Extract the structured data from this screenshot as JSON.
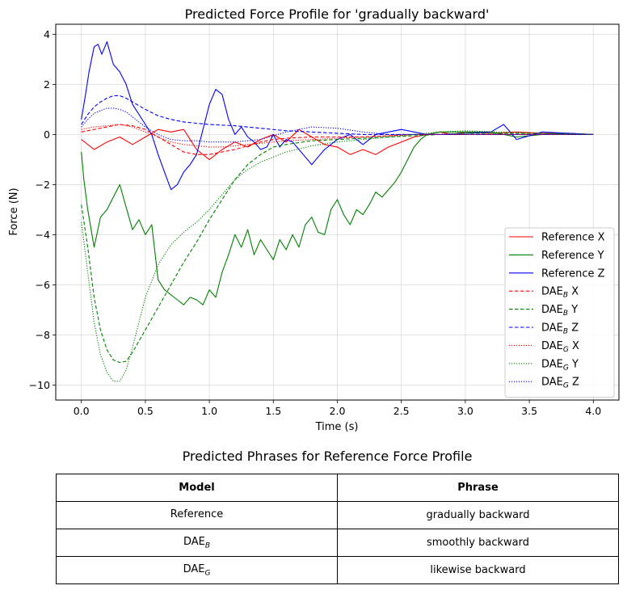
{
  "chart_data": {
    "type": "line",
    "title": "Predicted Force Profile for 'gradually backward'",
    "xlabel": "Time (s)",
    "ylabel": "Force (N)",
    "xlim": [
      -0.2,
      4.2
    ],
    "ylim": [
      -10.6,
      4.4
    ],
    "xticks": [
      0.0,
      0.5,
      1.0,
      1.5,
      2.0,
      2.5,
      3.0,
      3.5,
      4.0
    ],
    "xtick_labels": [
      "0.0",
      "0.5",
      "1.0",
      "1.5",
      "2.0",
      "2.5",
      "3.0",
      "3.5",
      "4.0"
    ],
    "yticks": [
      -10,
      -8,
      -6,
      -4,
      -2,
      0,
      2,
      4
    ],
    "ytick_labels": [
      "−10",
      "−8",
      "−6",
      "−4",
      "−2",
      "0",
      "2",
      "4"
    ],
    "grid": true,
    "legend_position": "lower-right",
    "series": [
      {
        "name": "Reference X",
        "legend_main": "Reference",
        "legend_sub": "",
        "legend_axis": "X",
        "color": "#ff0000",
        "dash": "solid",
        "x": [
          0,
          0.1,
          0.2,
          0.3,
          0.4,
          0.5,
          0.6,
          0.7,
          0.8,
          0.9,
          1.0,
          1.1,
          1.2,
          1.3,
          1.4,
          1.5,
          1.6,
          1.7,
          1.8,
          1.9,
          2.0,
          2.1,
          2.2,
          2.3,
          2.4,
          2.5,
          2.6,
          2.7,
          2.8,
          2.9,
          3.0,
          3.2,
          3.4,
          3.6,
          3.8,
          4.0
        ],
        "y": [
          -0.2,
          -0.6,
          -0.3,
          -0.1,
          -0.4,
          -0.1,
          0.2,
          0.1,
          0.2,
          -0.6,
          -1.0,
          -0.6,
          -0.3,
          -0.5,
          -0.2,
          0.0,
          -0.3,
          0.2,
          -0.1,
          -0.4,
          -0.5,
          -0.8,
          -0.6,
          -0.8,
          -0.5,
          -0.3,
          -0.1,
          0.0,
          0.1,
          0.0,
          0.1,
          0.05,
          0.1,
          0.05,
          0.05,
          0.0
        ]
      },
      {
        "name": "Reference Y",
        "legend_main": "Reference",
        "legend_sub": "",
        "legend_axis": "Y",
        "color": "#008000",
        "dash": "solid",
        "x": [
          0,
          0.02,
          0.05,
          0.1,
          0.15,
          0.2,
          0.25,
          0.3,
          0.35,
          0.4,
          0.45,
          0.5,
          0.55,
          0.6,
          0.65,
          0.7,
          0.75,
          0.8,
          0.85,
          0.9,
          0.95,
          1.0,
          1.05,
          1.1,
          1.15,
          1.2,
          1.25,
          1.3,
          1.35,
          1.4,
          1.45,
          1.5,
          1.55,
          1.6,
          1.65,
          1.7,
          1.75,
          1.8,
          1.85,
          1.9,
          1.95,
          2.0,
          2.05,
          2.1,
          2.15,
          2.2,
          2.25,
          2.3,
          2.35,
          2.4,
          2.45,
          2.5,
          2.55,
          2.6,
          2.65,
          2.7,
          2.8,
          2.9,
          3.0,
          3.2,
          3.4,
          3.6,
          3.8,
          4.0
        ],
        "y": [
          -0.7,
          -1.8,
          -3.0,
          -4.5,
          -3.3,
          -3.0,
          -2.5,
          -2.0,
          -2.9,
          -3.8,
          -3.4,
          -4.0,
          -3.6,
          -5.8,
          -6.2,
          -6.4,
          -6.6,
          -6.8,
          -6.5,
          -6.6,
          -6.8,
          -6.2,
          -6.5,
          -5.5,
          -4.8,
          -4.0,
          -4.5,
          -3.8,
          -4.8,
          -4.2,
          -4.6,
          -5.0,
          -4.2,
          -4.6,
          -4.0,
          -4.5,
          -3.6,
          -3.3,
          -3.9,
          -4.0,
          -3.0,
          -2.6,
          -3.2,
          -3.6,
          -3.0,
          -3.2,
          -2.8,
          -2.3,
          -2.5,
          -2.2,
          -1.9,
          -1.5,
          -1.0,
          -0.5,
          -0.2,
          0.0,
          0.1,
          0.1,
          0.1,
          0.1,
          -0.1,
          0.0,
          0.05,
          0.0
        ]
      },
      {
        "name": "Reference Z",
        "legend_main": "Reference",
        "legend_sub": "",
        "legend_axis": "Z",
        "color": "#0000ff",
        "dash": "solid",
        "x": [
          0,
          0.03,
          0.06,
          0.1,
          0.13,
          0.16,
          0.2,
          0.25,
          0.3,
          0.35,
          0.4,
          0.45,
          0.5,
          0.55,
          0.6,
          0.65,
          0.7,
          0.75,
          0.8,
          0.85,
          0.9,
          0.95,
          1.0,
          1.05,
          1.1,
          1.15,
          1.2,
          1.25,
          1.3,
          1.35,
          1.4,
          1.45,
          1.5,
          1.55,
          1.6,
          1.65,
          1.7,
          1.75,
          1.8,
          1.85,
          1.9,
          1.95,
          2.0,
          2.1,
          2.2,
          2.3,
          2.4,
          2.5,
          2.6,
          2.7,
          2.8,
          3.0,
          3.2,
          3.3,
          3.4,
          3.6,
          3.8,
          4.0
        ],
        "y": [
          0.6,
          1.5,
          2.5,
          3.5,
          3.6,
          3.2,
          3.7,
          2.8,
          2.5,
          2.0,
          1.2,
          0.8,
          0.4,
          0.0,
          -0.8,
          -1.5,
          -2.2,
          -2.0,
          -1.5,
          -1.2,
          -0.8,
          0.2,
          1.2,
          1.8,
          1.6,
          0.6,
          0.0,
          0.3,
          -0.1,
          -0.3,
          -0.6,
          -0.5,
          0.0,
          -0.5,
          -0.2,
          -0.3,
          -0.6,
          -0.9,
          -1.2,
          -0.9,
          -0.6,
          -0.4,
          -0.2,
          0.0,
          -0.4,
          0.0,
          0.1,
          0.2,
          0.1,
          0.0,
          0.0,
          0.05,
          0.1,
          0.4,
          -0.2,
          0.1,
          0.05,
          0.0
        ]
      },
      {
        "name": "DAE_B X",
        "legend_main": "DAE",
        "legend_sub": "B",
        "legend_axis": "X",
        "color": "#ff0000",
        "dash": "dashed",
        "x": [
          0,
          0.1,
          0.2,
          0.3,
          0.4,
          0.5,
          0.6,
          0.7,
          0.8,
          0.9,
          1.0,
          1.1,
          1.2,
          1.3,
          1.4,
          1.5,
          1.6,
          1.8,
          2.0,
          2.2,
          2.4,
          2.6,
          2.8,
          3.0,
          3.5,
          4.0
        ],
        "y": [
          0.1,
          0.2,
          0.3,
          0.4,
          0.35,
          0.2,
          -0.1,
          -0.4,
          -0.7,
          -0.8,
          -0.8,
          -0.7,
          -0.6,
          -0.45,
          -0.3,
          -0.2,
          -0.15,
          -0.1,
          -0.1,
          -0.1,
          -0.05,
          0.0,
          0.0,
          0.0,
          0.0,
          0.0
        ]
      },
      {
        "name": "DAE_B Y",
        "legend_main": "DAE",
        "legend_sub": "B",
        "legend_axis": "Y",
        "color": "#008000",
        "dash": "dashed",
        "x": [
          0,
          0.05,
          0.1,
          0.15,
          0.2,
          0.25,
          0.3,
          0.35,
          0.4,
          0.5,
          0.6,
          0.7,
          0.8,
          0.9,
          1.0,
          1.1,
          1.2,
          1.3,
          1.4,
          1.5,
          1.6,
          1.8,
          2.0,
          2.2,
          2.4,
          2.6,
          2.8,
          3.0,
          3.5,
          4.0
        ],
        "y": [
          -2.8,
          -4.5,
          -6.5,
          -7.8,
          -8.6,
          -9.0,
          -9.1,
          -9.05,
          -8.7,
          -7.8,
          -6.9,
          -6.0,
          -5.1,
          -4.3,
          -3.4,
          -2.6,
          -1.8,
          -1.2,
          -0.8,
          -0.5,
          -0.4,
          -0.25,
          -0.2,
          -0.15,
          -0.1,
          -0.05,
          0.0,
          0.05,
          0.05,
          0.0
        ]
      },
      {
        "name": "DAE_B Z",
        "legend_main": "DAE",
        "legend_sub": "B",
        "legend_axis": "Z",
        "color": "#0000ff",
        "dash": "dashed",
        "x": [
          0,
          0.05,
          0.1,
          0.15,
          0.2,
          0.25,
          0.3,
          0.35,
          0.4,
          0.5,
          0.6,
          0.7,
          0.8,
          0.9,
          1.0,
          1.2,
          1.4,
          1.6,
          1.8,
          2.0,
          2.2,
          2.4,
          2.6,
          3.0,
          3.5,
          4.0
        ],
        "y": [
          0.4,
          0.8,
          1.1,
          1.3,
          1.45,
          1.55,
          1.55,
          1.45,
          1.3,
          1.0,
          0.75,
          0.6,
          0.5,
          0.45,
          0.4,
          0.35,
          0.25,
          0.15,
          0.1,
          0.05,
          0.0,
          0.0,
          0.0,
          0.0,
          0.0,
          0.0
        ]
      },
      {
        "name": "DAE_G X",
        "legend_main": "DAE",
        "legend_sub": "G",
        "legend_axis": "X",
        "color": "#ff0000",
        "dash": "dotted",
        "x": [
          0,
          0.1,
          0.2,
          0.3,
          0.4,
          0.5,
          0.6,
          0.7,
          0.8,
          0.9,
          1.0,
          1.1,
          1.2,
          1.4,
          1.6,
          1.8,
          2.0,
          2.2,
          2.4,
          2.6,
          3.0,
          3.5,
          4.0
        ],
        "y": [
          0.2,
          0.3,
          0.35,
          0.4,
          0.3,
          0.1,
          -0.1,
          -0.3,
          -0.4,
          -0.45,
          -0.5,
          -0.5,
          -0.45,
          -0.35,
          -0.25,
          -0.2,
          -0.15,
          -0.1,
          -0.05,
          0.0,
          0.0,
          0.0,
          0.0
        ]
      },
      {
        "name": "DAE_G Y",
        "legend_main": "DAE",
        "legend_sub": "G",
        "legend_axis": "Y",
        "color": "#008000",
        "dash": "dotted",
        "x": [
          0,
          0.05,
          0.1,
          0.15,
          0.2,
          0.25,
          0.3,
          0.35,
          0.4,
          0.45,
          0.5,
          0.6,
          0.7,
          0.8,
          0.9,
          1.0,
          1.1,
          1.2,
          1.3,
          1.4,
          1.5,
          1.6,
          1.8,
          2.0,
          2.2,
          2.4,
          2.6,
          2.8,
          3.0,
          3.5,
          4.0
        ],
        "y": [
          -3.5,
          -5.5,
          -7.5,
          -8.8,
          -9.5,
          -9.85,
          -9.85,
          -9.4,
          -8.5,
          -7.5,
          -6.5,
          -5.2,
          -4.4,
          -3.9,
          -3.5,
          -3.0,
          -2.4,
          -1.8,
          -1.4,
          -1.1,
          -0.9,
          -0.7,
          -0.45,
          -0.3,
          -0.2,
          -0.1,
          0.0,
          0.1,
          0.15,
          0.05,
          0.0
        ]
      },
      {
        "name": "DAE_G Z",
        "legend_main": "DAE",
        "legend_sub": "G",
        "legend_axis": "Z",
        "color": "#0000ff",
        "dash": "dotted",
        "x": [
          0,
          0.05,
          0.1,
          0.15,
          0.2,
          0.25,
          0.3,
          0.35,
          0.4,
          0.5,
          0.6,
          0.7,
          0.8,
          0.9,
          1.0,
          1.2,
          1.4,
          1.6,
          1.8,
          2.0,
          2.2,
          2.4,
          2.6,
          3.0,
          3.5,
          4.0
        ],
        "y": [
          0.3,
          0.6,
          0.85,
          0.95,
          1.05,
          1.05,
          1.0,
          0.9,
          0.7,
          0.3,
          0.0,
          -0.2,
          -0.25,
          -0.25,
          -0.3,
          -0.3,
          -0.2,
          0.1,
          0.3,
          0.25,
          0.1,
          0.0,
          0.0,
          0.0,
          0.0,
          0.0
        ]
      }
    ]
  },
  "table": {
    "title": "Predicted Phrases for Reference Force Profile",
    "headers": [
      "Model",
      "Phrase"
    ],
    "rows": [
      {
        "model_main": "Reference",
        "model_sub": "",
        "phrase": "gradually backward"
      },
      {
        "model_main": "DAE",
        "model_sub": "B",
        "phrase": "smoothly backward"
      },
      {
        "model_main": "DAE",
        "model_sub": "G",
        "phrase": "likewise  backward"
      }
    ]
  }
}
